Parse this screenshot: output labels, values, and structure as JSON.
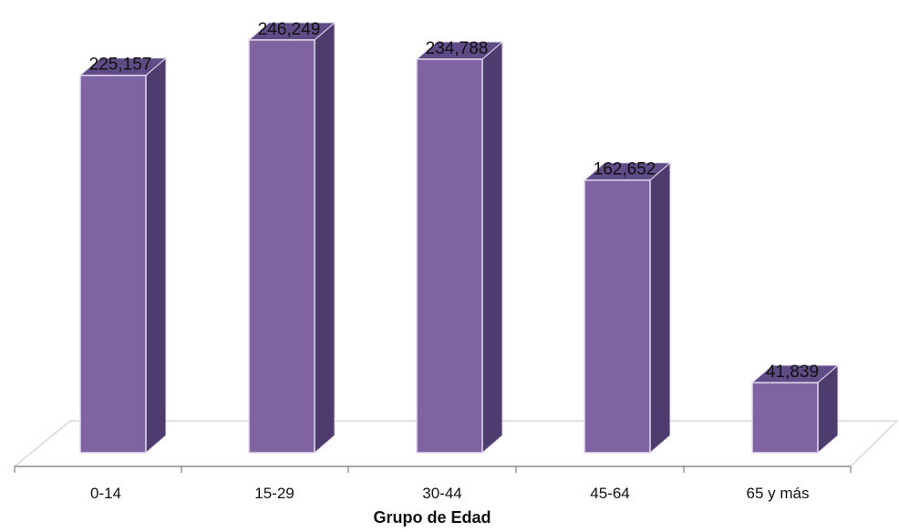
{
  "chart_data": {
    "type": "bar",
    "style": "3d-column",
    "categories": [
      "0-14",
      "15-29",
      "30-44",
      "45-64",
      "65 y más"
    ],
    "values": [
      225157,
      246249,
      234788,
      162652,
      41839
    ],
    "value_labels": [
      "225,157",
      "246,249",
      "234,788",
      "162,652",
      "41,839"
    ],
    "title": "",
    "xlabel": "Grupo  de Edad",
    "ylabel": "",
    "ylim": [
      0,
      250000
    ],
    "grid": false,
    "legend": "none",
    "colors": {
      "bar_front": "#8064a2",
      "bar_side": "#4f3c6e",
      "bar_top": "#5f4b86",
      "bar_edge": "#e4dcee",
      "floor": "#ffffff",
      "floor_edge": "#d0d0d0",
      "axis": "#7f7f7f",
      "text": "#111111"
    }
  }
}
